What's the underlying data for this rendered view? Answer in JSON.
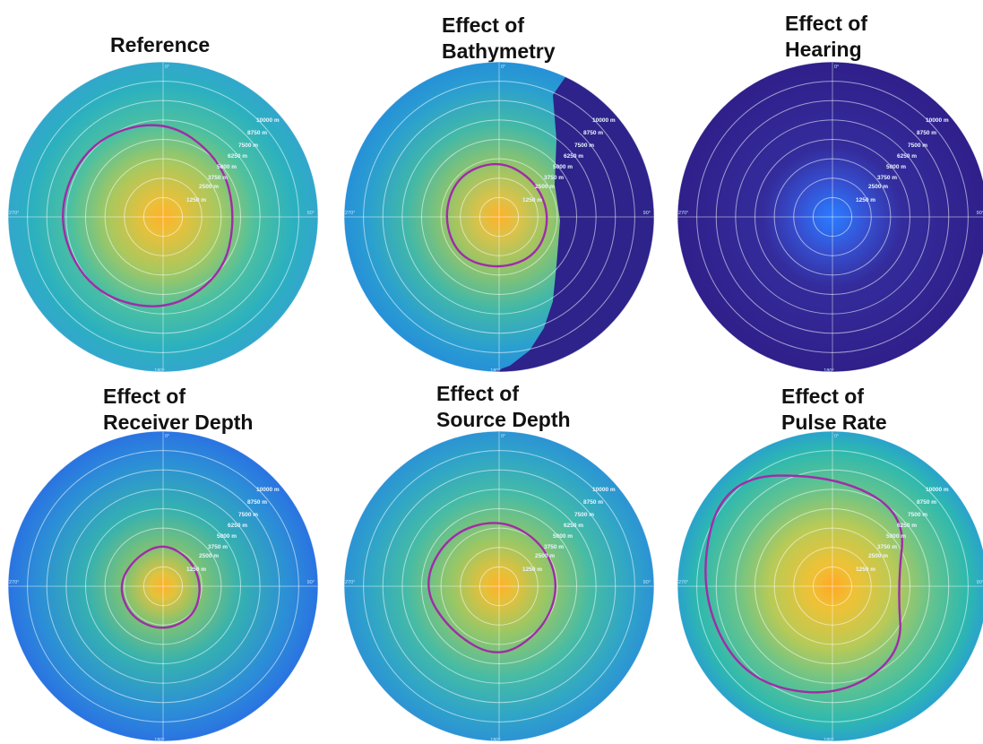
{
  "chart_data": [
    {
      "type": "heatmap",
      "subtype": "polar",
      "title_lines": [
        "Reference"
      ],
      "radial_tick_labels": [
        "1250 m",
        "2500 m",
        "3750 m",
        "5000 m",
        "6250 m",
        "7500 m",
        "8750 m",
        "10000 m"
      ],
      "angle_labels": [
        "0°",
        "90°",
        "180°",
        "270°"
      ],
      "colormap": "parula",
      "field": "centered source, smooth radial decay",
      "contour_color": "#a02ca8",
      "contour_radius_m": [
        {
          "bearing_deg": 0,
          "range_m": 6400
        },
        {
          "bearing_deg": 45,
          "range_m": 5300
        },
        {
          "bearing_deg": 90,
          "range_m": 4700
        },
        {
          "bearing_deg": 135,
          "range_m": 5400
        },
        {
          "bearing_deg": 180,
          "range_m": 6200
        },
        {
          "bearing_deg": 225,
          "range_m": 6800
        },
        {
          "bearing_deg": 270,
          "range_m": 7000
        },
        {
          "bearing_deg": 315,
          "range_m": 6900
        }
      ]
    },
    {
      "type": "heatmap",
      "subtype": "polar",
      "title_lines": [
        "Effect of",
        "Bathymetry"
      ],
      "radial_tick_labels": [
        "1250 m",
        "2500 m",
        "3750 m",
        "5000 m",
        "6250 m",
        "7500 m",
        "8750 m",
        "10000 m"
      ],
      "angle_labels": [
        "0°",
        "90°",
        "180°",
        "270°"
      ],
      "colormap": "parula",
      "field": "centered source, shadow zone on east side",
      "contour_color": "#a02ca8",
      "contour_radius_m": [
        {
          "bearing_deg": 0,
          "range_m": 3700
        },
        {
          "bearing_deg": 45,
          "range_m": 3300
        },
        {
          "bearing_deg": 90,
          "range_m": 3300
        },
        {
          "bearing_deg": 135,
          "range_m": 3500
        },
        {
          "bearing_deg": 180,
          "range_m": 3400
        },
        {
          "bearing_deg": 225,
          "range_m": 3700
        },
        {
          "bearing_deg": 270,
          "range_m": 3600
        },
        {
          "bearing_deg": 315,
          "range_m": 3800
        }
      ]
    },
    {
      "type": "heatmap",
      "subtype": "polar",
      "title_lines": [
        "Effect of",
        "Hearing"
      ],
      "radial_tick_labels": [
        "1250 m",
        "2500 m",
        "3750 m",
        "5000 m",
        "6250 m",
        "7500 m",
        "8750 m",
        "10000 m"
      ],
      "angle_labels": [
        "0°",
        "90°",
        "180°",
        "270°"
      ],
      "colormap": "parula",
      "field": "low levels everywhere, faint center",
      "contour_color": "#a02ca8",
      "contour_radius_m": []
    },
    {
      "type": "heatmap",
      "subtype": "polar",
      "title_lines": [
        "Effect of",
        "Receiver Depth"
      ],
      "radial_tick_labels": [
        "1250 m",
        "2500 m",
        "3750 m",
        "5000 m",
        "6250 m",
        "7500 m",
        "8750 m",
        "10000 m"
      ],
      "angle_labels": [
        "0°",
        "90°",
        "180°",
        "270°"
      ],
      "colormap": "parula",
      "field": "centered source, fast decay",
      "contour_color": "#a02ca8",
      "contour_radius_m": [
        {
          "bearing_deg": 0,
          "range_m": 2800
        },
        {
          "bearing_deg": 45,
          "range_m": 2500
        },
        {
          "bearing_deg": 90,
          "range_m": 2500
        },
        {
          "bearing_deg": 135,
          "range_m": 2800
        },
        {
          "bearing_deg": 180,
          "range_m": 2900
        },
        {
          "bearing_deg": 225,
          "range_m": 2900
        },
        {
          "bearing_deg": 270,
          "range_m": 2900
        },
        {
          "bearing_deg": 315,
          "range_m": 2600
        }
      ]
    },
    {
      "type": "heatmap",
      "subtype": "polar",
      "title_lines": [
        "Effect of",
        "Source Depth"
      ],
      "radial_tick_labels": [
        "1250 m",
        "2500 m",
        "3750 m",
        "5000 m",
        "6250 m",
        "7500 m",
        "8750 m",
        "10000 m"
      ],
      "angle_labels": [
        "0°",
        "90°",
        "180°",
        "270°"
      ],
      "colormap": "parula",
      "field": "centered source, moderate decay",
      "contour_color": "#a02ca8",
      "contour_radius_m": [
        {
          "bearing_deg": 0,
          "range_m": 4400
        },
        {
          "bearing_deg": 45,
          "range_m": 4000
        },
        {
          "bearing_deg": 90,
          "range_m": 3900
        },
        {
          "bearing_deg": 135,
          "range_m": 4000
        },
        {
          "bearing_deg": 180,
          "range_m": 4700
        },
        {
          "bearing_deg": 225,
          "range_m": 4300
        },
        {
          "bearing_deg": 270,
          "range_m": 5000
        },
        {
          "bearing_deg": 315,
          "range_m": 4700
        }
      ]
    },
    {
      "type": "heatmap",
      "subtype": "polar",
      "title_lines": [
        "Effect of",
        "Pulse Rate"
      ],
      "radial_tick_labels": [
        "1250 m",
        "2500 m",
        "3750 m",
        "5000 m",
        "6250 m",
        "7500 m",
        "8750 m",
        "10000 m"
      ],
      "angle_labels": [
        "0°",
        "90°",
        "180°",
        "270°"
      ],
      "colormap": "parula",
      "field": "centered source, broad high-level region",
      "contour_color": "#a02ca8",
      "contour_radius_m": [
        {
          "bearing_deg": 0,
          "range_m": 7200
        },
        {
          "bearing_deg": 45,
          "range_m": 6700
        },
        {
          "bearing_deg": 90,
          "range_m": 4200
        },
        {
          "bearing_deg": 135,
          "range_m": 6400
        },
        {
          "bearing_deg": 180,
          "range_m": 7300
        },
        {
          "bearing_deg": 225,
          "range_m": 8400
        },
        {
          "bearing_deg": 270,
          "range_m": 8700
        },
        {
          "bearing_deg": 315,
          "range_m": 10000
        }
      ]
    }
  ]
}
